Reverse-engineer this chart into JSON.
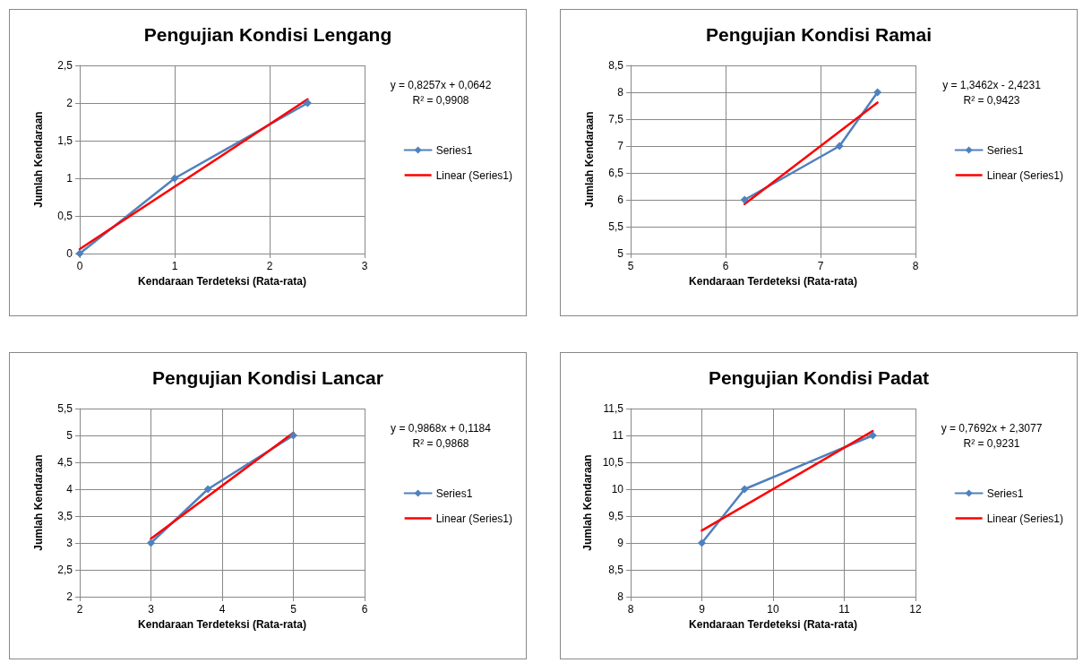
{
  "chart_data": [
    {
      "type": "line",
      "title": "Pengujian Kondisi Lengang",
      "xlabel": "Kendaraan Terdeteksi (Rata-rata)",
      "ylabel": "Jumlah Kendaraan",
      "annotations": [
        "y = 0,8257x + 0,0642",
        "R² = 0,9908"
      ],
      "grid": true,
      "legend": "right",
      "xlim": [
        0,
        3
      ],
      "xticks": [
        0,
        1,
        2,
        3
      ],
      "ylim": [
        0,
        2.5
      ],
      "yticks": [
        0,
        {
          "value": 0.5,
          "label": "0,5"
        },
        1,
        {
          "value": 1.5,
          "label": "1,5"
        },
        2,
        {
          "value": 2.5,
          "label": "2,5"
        }
      ],
      "series": [
        {
          "name": "Series1",
          "color": "#4f81bd",
          "marker": "diamond",
          "x": [
            0,
            1,
            2.4
          ],
          "values": [
            0,
            1,
            2
          ]
        },
        {
          "name": "Linear (Series1)",
          "color": "#ff0000",
          "marker": "none",
          "x": [
            0,
            2.4
          ],
          "values": [
            0.06,
            2.05
          ]
        }
      ]
    },
    {
      "type": "line",
      "title": "Pengujian Kondisi Ramai",
      "xlabel": "Kendaraan Terdeteksi (Rata-rata)",
      "ylabel": "Jumlah Kendaraan",
      "annotations": [
        "y = 1,3462x - 2,4231",
        "R² = 0,9423"
      ],
      "grid": true,
      "legend": "right",
      "xlim": [
        5,
        8
      ],
      "xticks": [
        5,
        6,
        7,
        8
      ],
      "ylim": [
        5,
        8.5
      ],
      "yticks": [
        5,
        {
          "value": 5.5,
          "label": "5,5"
        },
        6,
        {
          "value": 6.5,
          "label": "6,5"
        },
        7,
        {
          "value": 7.5,
          "label": "7,5"
        },
        8,
        {
          "value": 8.5,
          "label": "8,5"
        }
      ],
      "series": [
        {
          "name": "Series1",
          "color": "#4f81bd",
          "marker": "diamond",
          "x": [
            6.2,
            7.2,
            7.6
          ],
          "values": [
            6,
            7,
            8
          ]
        },
        {
          "name": "Linear (Series1)",
          "color": "#ff0000",
          "marker": "none",
          "x": [
            6.2,
            7.6
          ],
          "values": [
            5.92,
            7.81
          ]
        }
      ]
    },
    {
      "type": "line",
      "title": "Pengujian Kondisi Lancar",
      "xlabel": "Kendaraan Terdeteksi (Rata-rata)",
      "ylabel": "Jumlah Kendaraan",
      "annotations": [
        "y = 0,9868x + 0,1184",
        "R² = 0,9868"
      ],
      "grid": true,
      "legend": "right",
      "xlim": [
        2,
        6
      ],
      "xticks": [
        2,
        3,
        4,
        5,
        6
      ],
      "ylim": [
        2,
        5.5
      ],
      "yticks": [
        2,
        {
          "value": 2.5,
          "label": "2,5"
        },
        3,
        {
          "value": 3.5,
          "label": "3,5"
        },
        4,
        {
          "value": 4.5,
          "label": "4,5"
        },
        5,
        {
          "value": 5.5,
          "label": "5,5"
        }
      ],
      "series": [
        {
          "name": "Series1",
          "color": "#4f81bd",
          "marker": "diamond",
          "x": [
            3,
            3.8,
            5
          ],
          "values": [
            3,
            4,
            5
          ]
        },
        {
          "name": "Linear (Series1)",
          "color": "#ff0000",
          "marker": "none",
          "x": [
            3,
            5
          ],
          "values": [
            3.08,
            5.05
          ]
        }
      ]
    },
    {
      "type": "line",
      "title": "Pengujian Kondisi Padat",
      "xlabel": "Kendaraan Terdeteksi (Rata-rata)",
      "ylabel": "Jumlah Kendaraan",
      "annotations": [
        "y = 0,7692x + 2,3077",
        "R² = 0,9231"
      ],
      "grid": true,
      "legend": "right",
      "xlim": [
        8,
        12
      ],
      "xticks": [
        8,
        9,
        10,
        11,
        12
      ],
      "ylim": [
        8,
        11.5
      ],
      "yticks": [
        8,
        {
          "value": 8.5,
          "label": "8,5"
        },
        9,
        {
          "value": 9.5,
          "label": "9,5"
        },
        10,
        {
          "value": 10.5,
          "label": "10,5"
        },
        11,
        {
          "value": 11.5,
          "label": "11,5"
        }
      ],
      "series": [
        {
          "name": "Series1",
          "color": "#4f81bd",
          "marker": "diamond",
          "x": [
            9,
            9.6,
            11.4
          ],
          "values": [
            9,
            10,
            11
          ]
        },
        {
          "name": "Linear (Series1)",
          "color": "#ff0000",
          "marker": "none",
          "x": [
            9,
            11.4
          ],
          "values": [
            9.23,
            11.08
          ]
        }
      ]
    }
  ]
}
